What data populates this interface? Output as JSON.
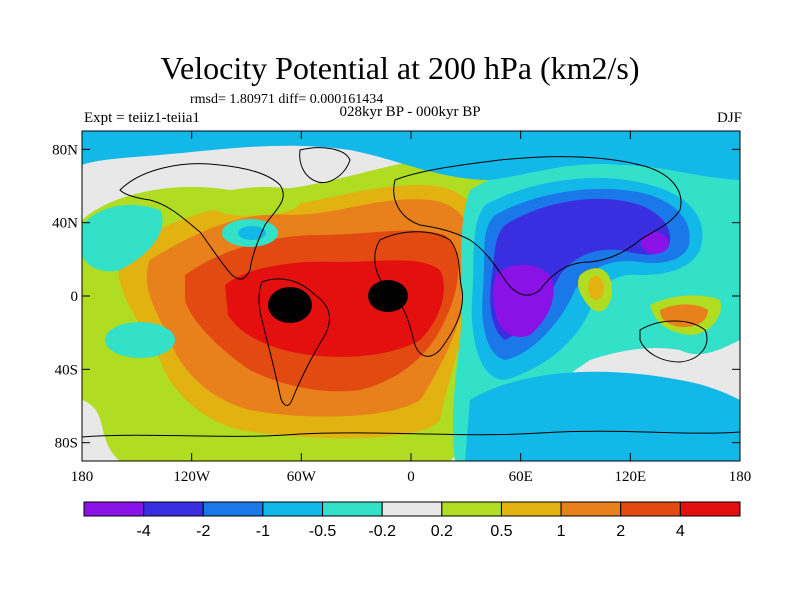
{
  "title": "Velocity Potential at 200 hPa (km2/s)",
  "stats": "rmsd= 1.80971 diff= 0.000161434",
  "experiment": "Expt = teiiz1-teiia1",
  "period": "028kyr BP - 000kyr BP",
  "season": "DJF",
  "lon_ticks": [
    "180",
    "120W",
    "60W",
    "0",
    "60E",
    "120E",
    "180"
  ],
  "lat_ticks": [
    "80N",
    "40N",
    "0",
    "40S",
    "80S"
  ],
  "colorbar": {
    "labels": [
      "-4",
      "-2",
      "-1",
      "-0.5",
      "-0.2",
      "0.2",
      "0.5",
      "1",
      "2",
      "4"
    ],
    "colors": [
      "#8a12e6",
      "#3a2fe0",
      "#1a78e8",
      "#12b8e8",
      "#33e0c8",
      "#e8e8e8",
      "#b0dc22",
      "#e2b210",
      "#e8801c",
      "#e24a12",
      "#e41010"
    ]
  },
  "map": {
    "projection": "cylindrical-equidistant",
    "lon_range": [
      -180,
      180
    ],
    "lat_range": [
      -90,
      90
    ],
    "variable": "velocity potential difference",
    "level": "200 hPa"
  }
}
